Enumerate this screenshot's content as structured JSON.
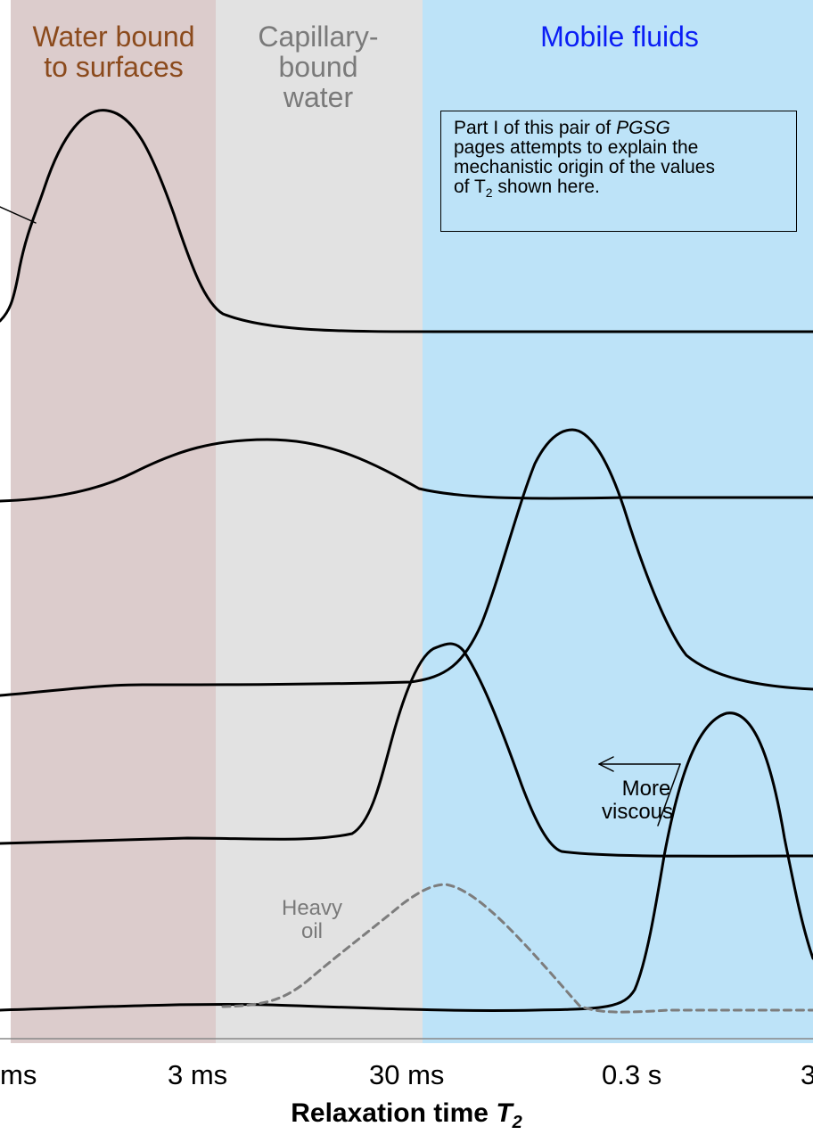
{
  "colors": {
    "surface_band": "#dccccc",
    "capillary_band": "#e2e2e2",
    "mobile_band": "#bde3f8",
    "surface_text": "#8b4a1c",
    "capillary_text": "#7a7a7a",
    "mobile_text": "#0b1ef5",
    "curve": "#000000",
    "heavy_oil_curve": "#7d7d7d"
  },
  "bands": {
    "surface_label": "Water bound\nto surfaces",
    "capillary_label": "Capillary-\nbound\nwater",
    "mobile_label": "Mobile fluids"
  },
  "note": {
    "line1_prefix": "Part I of this pair of ",
    "line1_italic": "PGSG",
    "line2": "pages attempts to explain the",
    "line3": "mechanistic origin of the values",
    "line4_prefix": "of T",
    "line4_sub": "2",
    "line4_suffix": " shown here."
  },
  "annotations": {
    "more": "More",
    "viscous": "viscous",
    "heavy": "Heavy",
    "oil": "oil"
  },
  "axis": {
    "ticks": [
      "ms",
      "3 ms",
      "30 ms",
      "0.3 s",
      "3"
    ],
    "title_prefix": "Relaxation time ",
    "title_var": "T",
    "title_sub": "2"
  }
}
